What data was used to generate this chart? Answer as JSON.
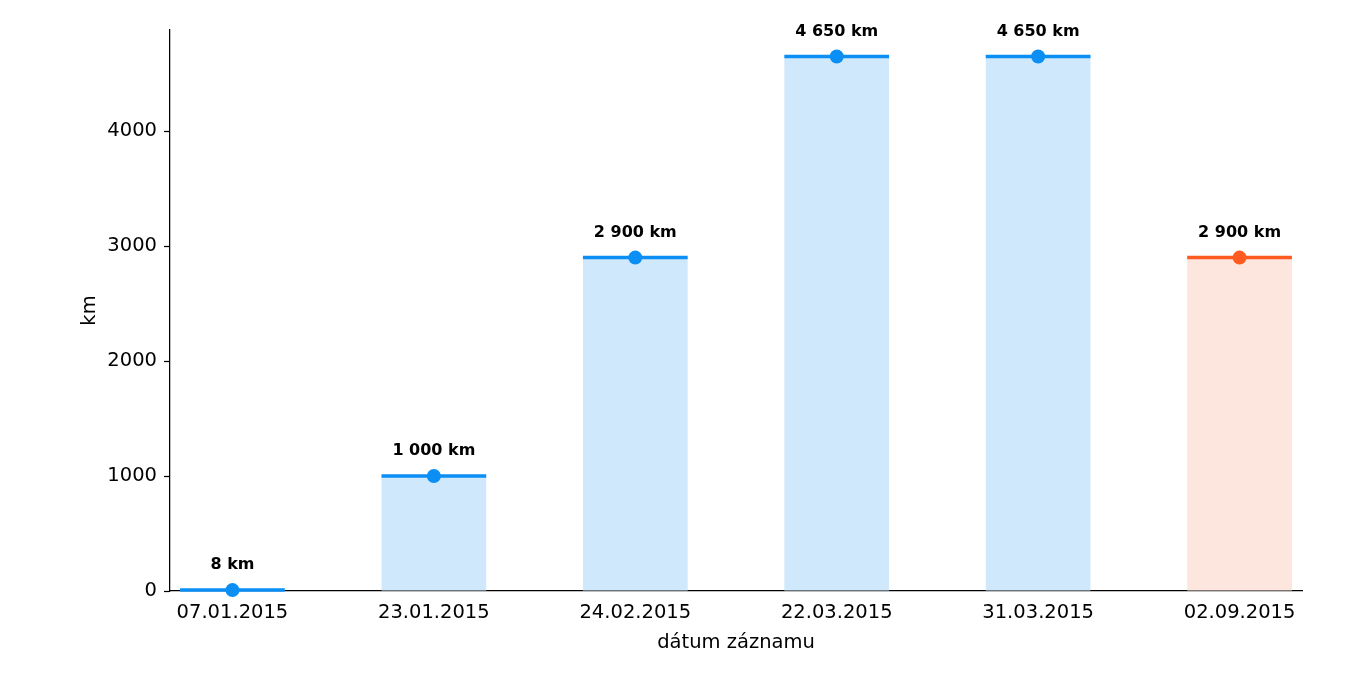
{
  "chart_data": {
    "type": "bar",
    "xlabel": "dátum záznamu",
    "ylabel": "km",
    "categories": [
      "07.01.2015",
      "23.01.2015",
      "24.02.2015",
      "22.03.2015",
      "31.03.2015",
      "02.09.2015"
    ],
    "ylim": [
      0,
      4880
    ],
    "yticks": [
      0,
      1000,
      2000,
      3000,
      4000
    ],
    "grid": false,
    "legend": false,
    "series": [
      {
        "colors": [
          "#cfe8fc",
          "#cfe8fc",
          "#cfe8fc",
          "#cfe8fc",
          "#cfe8fc",
          "#fde6dd"
        ],
        "values": [
          8,
          1000,
          2900,
          4650,
          4650,
          2900
        ],
        "value_labels": [
          "8 km",
          "1 000 km",
          "2 900 km",
          "4 650 km",
          "4 650 km",
          "2 900 km"
        ]
      },
      {
        "type": "scatter",
        "marker": "circle",
        "x": [
          "07.01.2015",
          "23.01.2015",
          "24.02.2015",
          "22.03.2015",
          "31.03.2015",
          "02.09.2015"
        ],
        "colors": [
          "#0b8ff4",
          "#0b8ff4",
          "#0b8ff4",
          "#0b8ff4",
          "#0b8ff4",
          "#ff5a1f"
        ],
        "values": [
          8,
          1000,
          2900,
          4650,
          4650,
          2900
        ]
      }
    ]
  }
}
